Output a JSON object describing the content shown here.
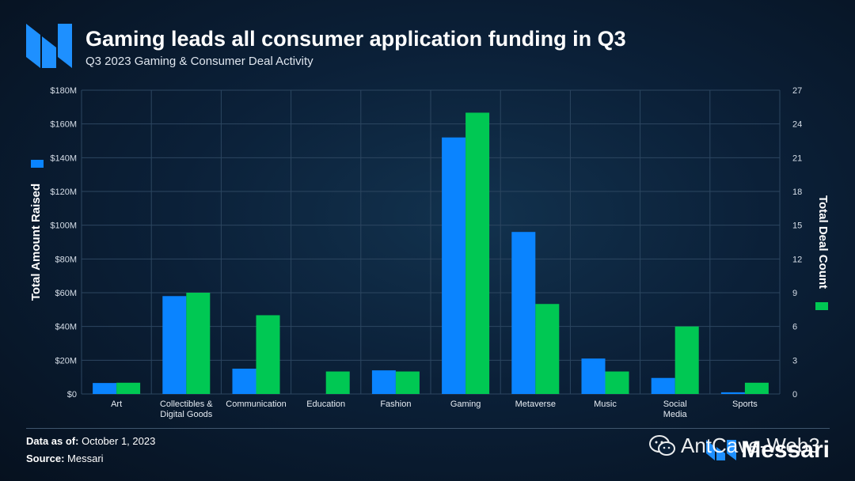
{
  "header": {
    "title": "Gaming leads all consumer application funding in Q3",
    "subtitle": "Q3 2023 Gaming & Consumer Deal Activity"
  },
  "footer": {
    "data_label": "Data as of:",
    "data_value": "October 1, 2023",
    "source_label": "Source:",
    "source_value": "Messari"
  },
  "brand": {
    "name": "Messari",
    "icon": "messari-logo-icon"
  },
  "watermark": {
    "text": "AntCave-Web3",
    "icon": "wechat-icon"
  },
  "colors": {
    "amount": "#0a84ff",
    "count": "#00c853"
  },
  "chart_data": {
    "type": "bar",
    "categories": [
      [
        "Art"
      ],
      [
        "Collectibles &",
        "Digital Goods"
      ],
      [
        "Communication"
      ],
      [
        "Education"
      ],
      [
        "Fashion"
      ],
      [
        "Gaming"
      ],
      [
        "Metaverse"
      ],
      [
        "Music"
      ],
      [
        "Social",
        "Media"
      ],
      [
        "Sports"
      ]
    ],
    "series": [
      {
        "name": "Total Amount Raised",
        "axis": "left",
        "color": "#0a84ff",
        "values": [
          6.5,
          58,
          15,
          0,
          14,
          152,
          96,
          21,
          9.5,
          1
        ]
      },
      {
        "name": "Total Deal Count",
        "axis": "right",
        "color": "#00c853",
        "values": [
          1,
          9,
          7,
          2,
          2,
          25,
          8,
          2,
          6,
          1
        ]
      }
    ],
    "ylabel": "Total Amount Raised",
    "y2label": "Total Deal Count",
    "ylim": [
      0,
      180
    ],
    "y2lim": [
      0,
      27
    ],
    "yticks": [
      "$0",
      "$20M",
      "$40M",
      "$60M",
      "$80M",
      "$100M",
      "$120M",
      "$140M",
      "$160M",
      "$180M"
    ],
    "y2ticks": [
      "0",
      "3",
      "6",
      "9",
      "12",
      "15",
      "18",
      "21",
      "24",
      "27"
    ],
    "grid": true
  }
}
